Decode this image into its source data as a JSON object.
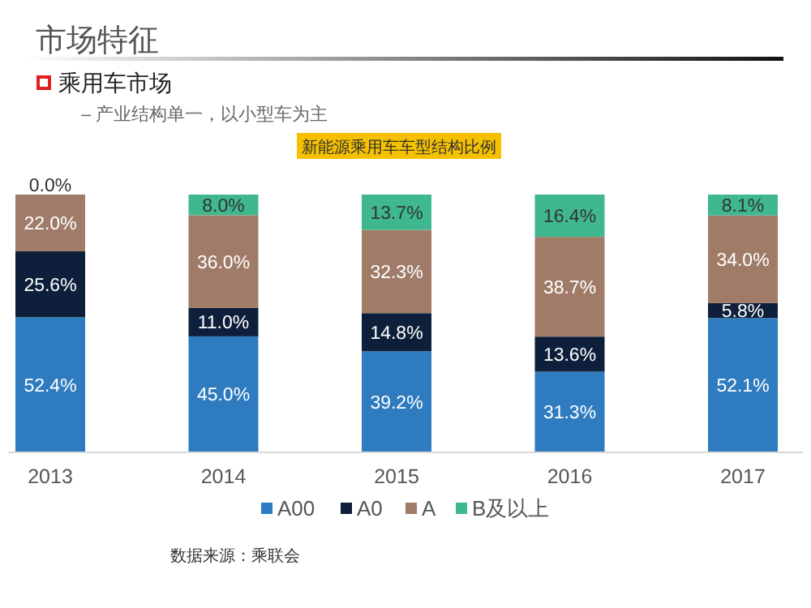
{
  "chart_data": {
    "type": "bar",
    "stacked": true,
    "title": "市场特征",
    "subtitle": "乘用车市场",
    "annotations": [
      "– 产业结构单一，以小型车为主",
      "新能源乘用车车型结构比例",
      "数据来源：乘联会"
    ],
    "categories": [
      "2013",
      "2014",
      "2015",
      "2016",
      "2017"
    ],
    "series": [
      {
        "name": "A00",
        "color": "#2e7bbf",
        "values": [
          52.4,
          45.0,
          39.2,
          31.3,
          52.1
        ],
        "value_labels": [
          "52.4%",
          "45.0%",
          "39.2%",
          "31.3%",
          "52.1%"
        ]
      },
      {
        "name": "A0",
        "color": "#0d1f3a",
        "values": [
          25.6,
          11.0,
          14.8,
          13.6,
          5.8
        ],
        "value_labels": [
          "25.6%",
          "11.0%",
          "14.8%",
          "13.6%",
          "5.8%"
        ]
      },
      {
        "name": "A",
        "color": "#a07c68",
        "values": [
          22.0,
          36.0,
          32.3,
          38.7,
          34.0
        ],
        "value_labels": [
          "22.0%",
          "36.0%",
          "32.3%",
          "38.7%",
          "34.0%"
        ]
      },
      {
        "name": "B及以上",
        "color": "#3fb88f",
        "values": [
          0.0,
          8.0,
          13.7,
          16.4,
          8.1
        ],
        "value_labels": [
          "0.0%",
          "8.0%",
          "13.7%",
          "16.4%",
          "8.1%"
        ]
      }
    ],
    "legend": "bottom"
  }
}
